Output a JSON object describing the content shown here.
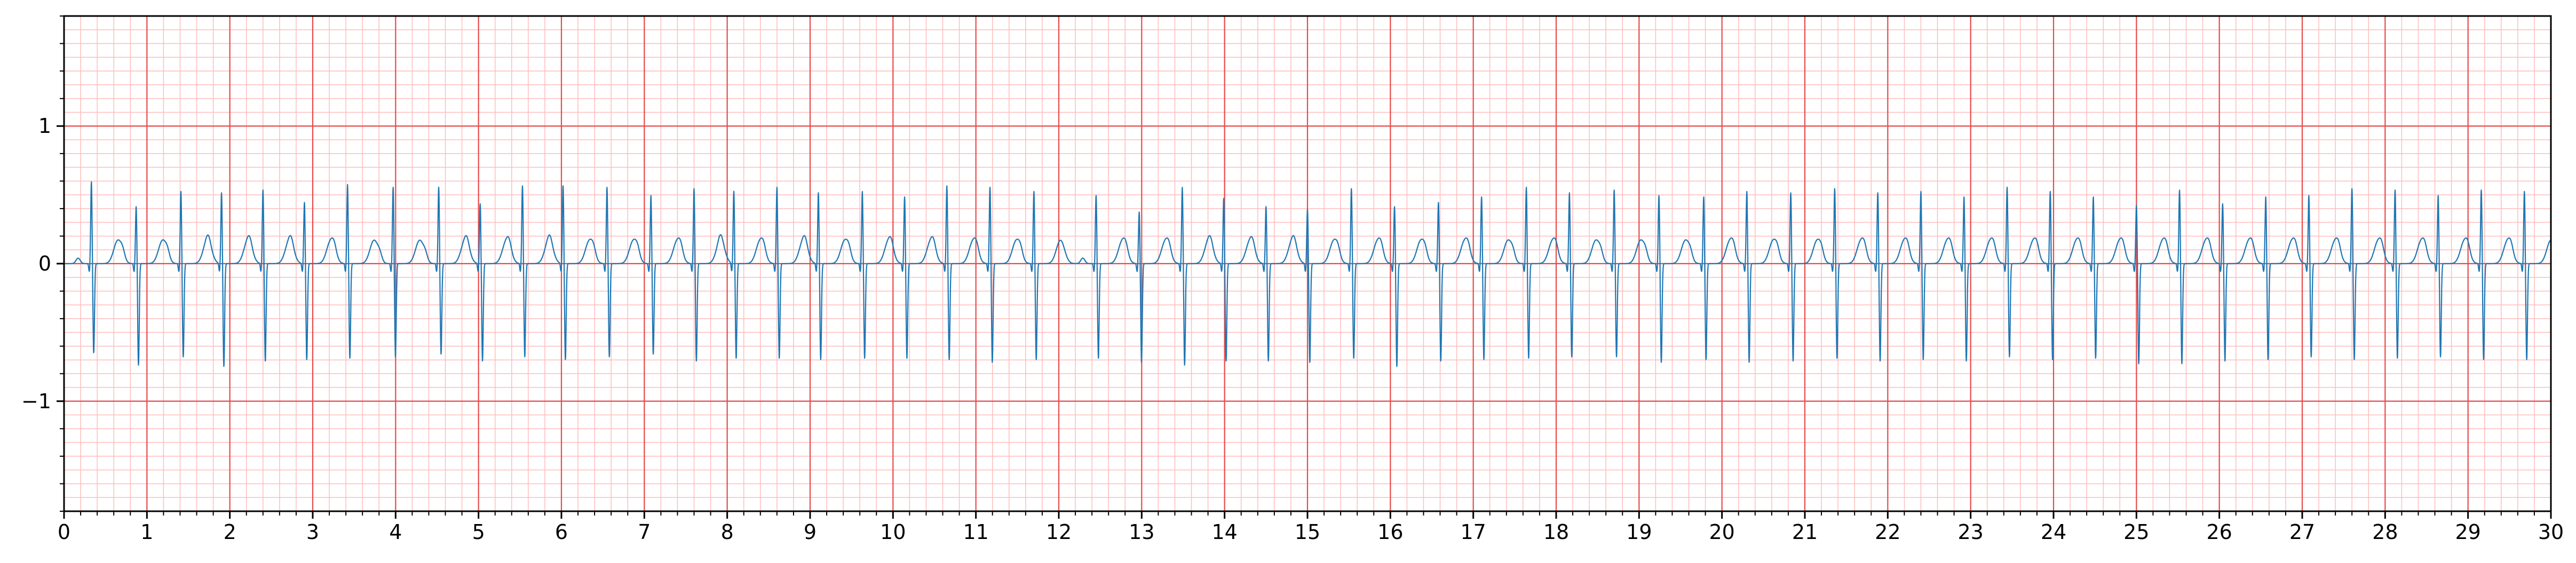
{
  "chart_data": {
    "type": "line",
    "title": "",
    "xlabel": "",
    "ylabel": "",
    "xlim": [
      0,
      30
    ],
    "ylim": [
      -1.8,
      1.8
    ],
    "grid": true,
    "legend": "none",
    "x_ticks": [
      0,
      1,
      2,
      3,
      4,
      5,
      6,
      7,
      8,
      9,
      10,
      11,
      12,
      13,
      14,
      15,
      16,
      17,
      18,
      19,
      20,
      21,
      22,
      23,
      24,
      25,
      26,
      27,
      28,
      29,
      30
    ],
    "x_tick_labels": [
      "0",
      "1",
      "2",
      "3",
      "4",
      "5",
      "6",
      "7",
      "8",
      "9",
      "10",
      "11",
      "12",
      "13",
      "14",
      "15",
      "16",
      "17",
      "18",
      "19",
      "20",
      "21",
      "22",
      "23",
      "24",
      "25",
      "26",
      "27",
      "28",
      "29",
      "30"
    ],
    "y_ticks": [
      -1,
      0,
      1
    ],
    "y_tick_labels": [
      "−1",
      "0",
      "1"
    ],
    "colors": {
      "trace": "#1f77b4",
      "major_grid": "#e84a4a",
      "minor_grid": "#ffbcbc",
      "axes": "#000000"
    },
    "series": [
      {
        "beats": {
          "times": [
            0.33,
            0.87,
            1.41,
            1.9,
            2.4,
            2.9,
            3.42,
            3.97,
            4.52,
            5.02,
            5.53,
            6.02,
            6.55,
            7.08,
            7.6,
            8.08,
            8.6,
            9.1,
            9.63,
            10.14,
            10.65,
            11.17,
            11.7,
            12.45,
            12.97,
            13.49,
            13.99,
            14.5,
            15.0,
            15.53,
            16.05,
            16.58,
            17.1,
            17.64,
            18.16,
            18.7,
            19.24,
            19.78,
            20.3,
            20.83,
            21.36,
            21.88,
            22.4,
            22.92,
            23.44,
            23.96,
            24.48,
            25.0,
            25.52,
            26.04,
            26.56,
            27.08,
            27.6,
            28.12,
            28.64,
            29.16,
            29.68
          ],
          "r_amplitudes": [
            0.6,
            0.42,
            0.53,
            0.52,
            0.54,
            0.45,
            0.58,
            0.56,
            0.56,
            0.44,
            0.57,
            0.57,
            0.56,
            0.5,
            0.55,
            0.53,
            0.56,
            0.52,
            0.53,
            0.49,
            0.57,
            0.56,
            0.53,
            0.5,
            0.38,
            0.56,
            0.48,
            0.42,
            0.4,
            0.55,
            0.42,
            0.45,
            0.49,
            0.56,
            0.52,
            0.54,
            0.5,
            0.49,
            0.53,
            0.52,
            0.55,
            0.52,
            0.53,
            0.49,
            0.56,
            0.53,
            0.49,
            0.43,
            0.54,
            0.44,
            0.49,
            0.5,
            0.55,
            0.54,
            0.5,
            0.54,
            0.53
          ],
          "s_amplitudes": [
            -0.65,
            -0.74,
            -0.68,
            -0.75,
            -0.71,
            -0.7,
            -0.69,
            -0.68,
            -0.66,
            -0.71,
            -0.68,
            -0.7,
            -0.68,
            -0.66,
            -0.71,
            -0.69,
            -0.69,
            -0.7,
            -0.69,
            -0.69,
            -0.7,
            -0.72,
            -0.7,
            -0.69,
            -0.72,
            -0.74,
            -0.71,
            -0.71,
            -0.72,
            -0.69,
            -0.75,
            -0.71,
            -0.7,
            -0.69,
            -0.68,
            -0.68,
            -0.72,
            -0.7,
            -0.72,
            -0.71,
            -0.69,
            -0.71,
            -0.7,
            -0.71,
            -0.68,
            -0.7,
            -0.69,
            -0.73,
            -0.73,
            -0.71,
            -0.7,
            -0.68,
            -0.7,
            -0.69,
            -0.68,
            -0.7,
            -0.7
          ],
          "t_amplitude": 0.17,
          "baseline": 0.0
        },
        "sample_rate_hz": 100
      }
    ]
  }
}
